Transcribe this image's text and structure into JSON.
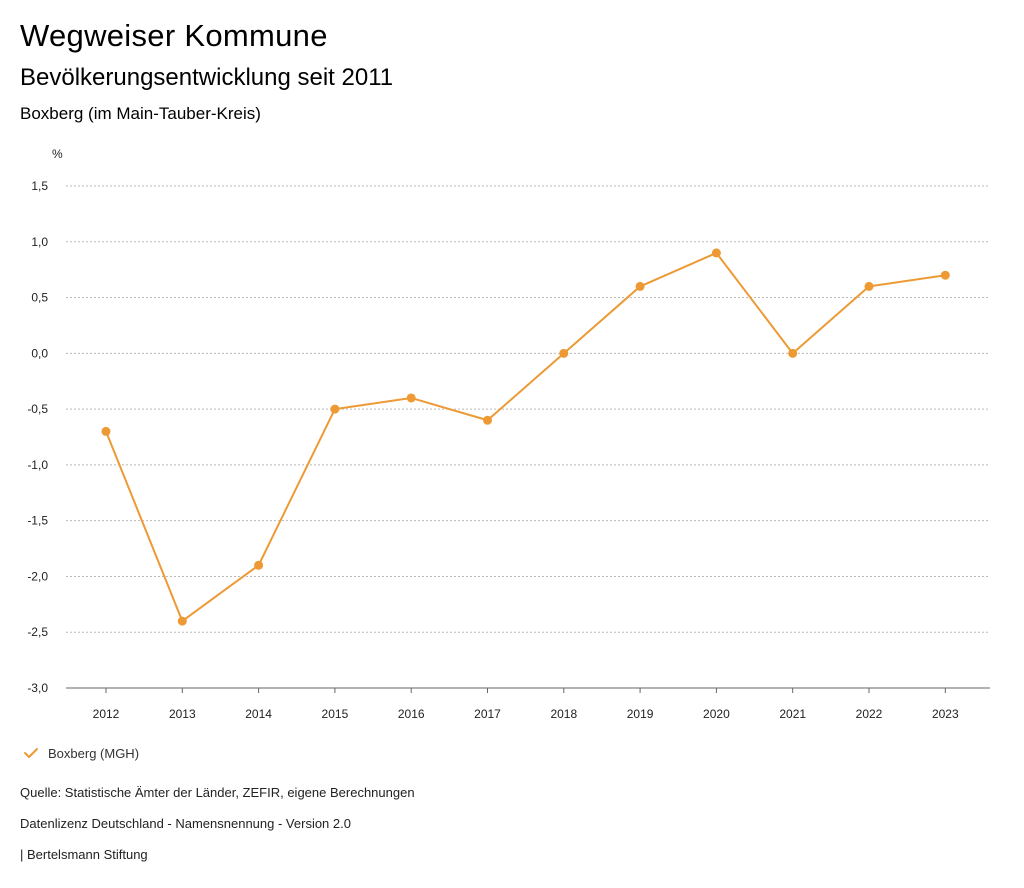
{
  "header": {
    "title": "Wegweiser Kommune",
    "subtitle": "Bevölkerungsentwicklung seit 2011",
    "region": "Boxberg (im Main-Tauber-Kreis)"
  },
  "chart_data": {
    "type": "line",
    "unit_label": "%",
    "x": [
      "2012",
      "2013",
      "2014",
      "2015",
      "2016",
      "2017",
      "2018",
      "2019",
      "2020",
      "2021",
      "2022",
      "2023"
    ],
    "series": [
      {
        "name": "Boxberg (MGH)",
        "color": "#ED9A35",
        "values": [
          -0.7,
          -2.4,
          -1.9,
          -0.5,
          -0.4,
          -0.6,
          0.0,
          0.6,
          0.9,
          0.0,
          0.6,
          0.7
        ]
      }
    ],
    "ylim": [
      -3.0,
      1.5
    ],
    "yticks": [
      1.5,
      1.0,
      0.5,
      0.0,
      -0.5,
      -1.0,
      -1.5,
      -2.0,
      -2.5,
      -3.0
    ],
    "ytick_labels": [
      "1,5",
      "1,0",
      "0,5",
      "0,0",
      "-0,5",
      "-1,0",
      "-1,5",
      "-2,0",
      "-2,5",
      "-3,0"
    ],
    "grid": true
  },
  "legend": {
    "label": "Boxberg (MGH)"
  },
  "footer": {
    "source": "Quelle: Statistische Ämter der Länder, ZEFIR, eigene Berechnungen",
    "license": "Datenlizenz Deutschland - Namensnennung - Version 2.0",
    "publisher": "| Bertelsmann Stiftung"
  }
}
